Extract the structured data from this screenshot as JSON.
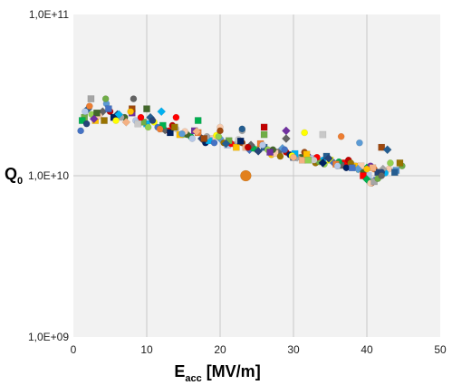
{
  "chart_data": {
    "type": "scatter",
    "title": "",
    "xlabel": {
      "main": "E",
      "sub": "acc",
      "unit": " [MV/m]"
    },
    "ylabel": {
      "main": "Q",
      "sub": "0"
    },
    "xlim": [
      0,
      50
    ],
    "ylim": [
      1000000000,
      100000000000
    ],
    "y_scale": "log",
    "grid": true,
    "x_tick_labels": [
      "0",
      "10",
      "20",
      "30",
      "40",
      "50"
    ],
    "y_tick_labels": [
      "1,0E+09",
      "1,0E+10",
      "1,0E+11"
    ],
    "colors": {
      "plot_background": "#f2f2f2",
      "grid": "#c8c8c8",
      "palette": [
        "#4472c4",
        "#ed7d31",
        "#a5a5a5",
        "#ffc000",
        "#5b9bd5",
        "#70ad47",
        "#264478",
        "#9e480e",
        "#636363",
        "#997300",
        "#255e91",
        "#43682b",
        "#f4b183",
        "#c00000",
        "#00b0f0",
        "#92d050",
        "#7030a0",
        "#ff0000",
        "#002060",
        "#ffff00",
        "#00b050",
        "#b4c7e7",
        "#c9c9c9",
        "#f8cbad"
      ],
      "outlier": "#e2801c"
    },
    "series": [
      {
        "points": [
          [
            1.0,
            19000000000.0
          ],
          [
            3.0,
            22000000000.0
          ],
          [
            6.0,
            24000000000.0
          ],
          [
            9.0,
            22000000000.0
          ],
          [
            12.0,
            19500000000.0
          ],
          [
            15.0,
            18000000000.0
          ],
          [
            18.0,
            16000000000.0
          ],
          [
            21.0,
            15500000000.0
          ],
          [
            24.0,
            14500000000.0
          ],
          [
            27.0,
            13500000000.0
          ],
          [
            30.0,
            13000000000.0
          ],
          [
            33.0,
            12000000000.0
          ],
          [
            36.0,
            11500000000.0
          ],
          [
            39.0,
            11000000000.0
          ],
          [
            42.0,
            10500000000.0
          ]
        ]
      },
      {
        "points": [
          [
            1.5,
            23000000000.0
          ],
          [
            4.0,
            25000000000.0
          ],
          [
            7.0,
            23000000000.0
          ],
          [
            10.0,
            21000000000.0
          ],
          [
            13.0,
            19000000000.0
          ],
          [
            16.0,
            17500000000.0
          ],
          [
            19.0,
            17000000000.0
          ],
          [
            22.0,
            15500000000.0
          ],
          [
            25.0,
            14500000000.0
          ],
          [
            28.0,
            14000000000.0
          ],
          [
            31.0,
            13000000000.0
          ],
          [
            34.0,
            12500000000.0
          ],
          [
            37.0,
            12000000000.0
          ],
          [
            40.0,
            11200000000.0
          ],
          [
            43.0,
            11000000000.0
          ]
        ]
      },
      {
        "points": [
          [
            2.0,
            26000000000.0
          ],
          [
            5.0,
            25000000000.0
          ],
          [
            8.0,
            24500000000.0
          ],
          [
            11.0,
            21500000000.0
          ],
          [
            14.0,
            19500000000.0
          ],
          [
            17.0,
            18500000000.0
          ],
          [
            20.0,
            17000000000.0
          ],
          [
            23.0,
            16000000000.0
          ],
          [
            26.0,
            15000000000.0
          ],
          [
            29.0,
            14000000000.0
          ],
          [
            32.0,
            13200000000.0
          ],
          [
            35.0,
            12500000000.0
          ],
          [
            38.0,
            11800000000.0
          ],
          [
            41.0,
            11000000000.0
          ],
          [
            44.0,
            10800000000.0
          ]
        ]
      },
      {
        "points": [
          [
            2.5,
            24000000000.0
          ],
          [
            5.5,
            23000000000.0
          ],
          [
            8.5,
            22000000000.0
          ],
          [
            11.5,
            20000000000.0
          ],
          [
            14.5,
            18000000000.0
          ],
          [
            17.5,
            17000000000.0
          ],
          [
            20.5,
            16000000000.0
          ],
          [
            23.5,
            15000000000.0
          ],
          [
            26.5,
            14500000000.0
          ],
          [
            29.5,
            13500000000.0
          ],
          [
            32.5,
            12800000000.0
          ],
          [
            35.5,
            12000000000.0
          ],
          [
            38.5,
            11500000000.0
          ],
          [
            41.5,
            10500000000.0
          ]
        ]
      },
      {
        "points": [
          [
            1.2,
            22000000000.0
          ],
          [
            3.5,
            23500000000.0
          ],
          [
            6.5,
            23000000000.0
          ],
          [
            9.5,
            21500000000.0
          ],
          [
            12.5,
            19200000000.0
          ],
          [
            15.5,
            18000000000.0
          ],
          [
            18.5,
            16500000000.0
          ],
          [
            21.5,
            15800000000.0
          ],
          [
            24.5,
            14800000000.0
          ],
          [
            27.5,
            13800000000.0
          ],
          [
            30.5,
            13000000000.0
          ],
          [
            33.5,
            12200000000.0
          ],
          [
            36.5,
            11600000000.0
          ],
          [
            39.5,
            10800000000.0
          ],
          [
            42.5,
            10400000000.0
          ]
        ]
      },
      {
        "points": [
          [
            2.2,
            27000000000.0
          ],
          [
            4.5,
            28000000000.0
          ],
          [
            8.0,
            26000000000.0
          ],
          [
            10.5,
            23000000000.0
          ],
          [
            13.5,
            20500000000.0
          ],
          [
            16.5,
            19000000000.0
          ],
          [
            19.5,
            17800000000.0
          ],
          [
            22.5,
            16800000000.0
          ],
          [
            25.5,
            15800000000.0
          ],
          [
            28.5,
            14800000000.0
          ],
          [
            31.5,
            14000000000.0
          ],
          [
            34.5,
            13200000000.0
          ],
          [
            37.5,
            12500000000.0
          ],
          [
            40.5,
            11500000000.0
          ]
        ]
      },
      {
        "points": [
          [
            1.8,
            21000000000.0
          ],
          [
            4.2,
            22000000000.0
          ],
          [
            7.2,
            21500000000.0
          ],
          [
            10.2,
            20000000000.0
          ],
          [
            13.2,
            18500000000.0
          ],
          [
            16.2,
            17000000000.0
          ],
          [
            19.2,
            16000000000.0
          ],
          [
            22.2,
            15000000000.0
          ],
          [
            25.2,
            14200000000.0
          ],
          [
            28.2,
            13200000000.0
          ],
          [
            31.2,
            12500000000.0
          ],
          [
            34.2,
            11800000000.0
          ],
          [
            37.2,
            11200000000.0
          ],
          [
            40.2,
            10000000000.0
          ],
          [
            41.0,
            9300000000.0
          ]
        ]
      },
      {
        "points": [
          [
            3.2,
            24500000000.0
          ],
          [
            6.2,
            24000000000.0
          ],
          [
            9.2,
            23000000000.0
          ],
          [
            12.2,
            20500000000.0
          ],
          [
            15.2,
            18800000000.0
          ],
          [
            18.2,
            17500000000.0
          ],
          [
            21.2,
            16500000000.0
          ],
          [
            24.2,
            15500000000.0
          ],
          [
            27.2,
            14500000000.0
          ],
          [
            30.2,
            13700000000.0
          ],
          [
            33.2,
            13000000000.0
          ],
          [
            36.2,
            12200000000.0
          ],
          [
            39.2,
            11500000000.0
          ],
          [
            42.2,
            11000000000.0
          ],
          [
            44.8,
            11500000000.0
          ]
        ]
      },
      {
        "points": [
          [
            2.8,
            22500000000.0
          ],
          [
            5.8,
            22000000000.0
          ],
          [
            8.8,
            21000000000.0
          ],
          [
            11.8,
            19500000000.0
          ],
          [
            14.8,
            18200000000.0
          ],
          [
            17.8,
            17000000000.0
          ],
          [
            20.8,
            15800000000.0
          ],
          [
            23.8,
            15000000000.0
          ],
          [
            26.8,
            14000000000.0
          ],
          [
            29.8,
            13300000000.0
          ],
          [
            32.8,
            12500000000.0
          ],
          [
            35.8,
            11800000000.0
          ],
          [
            38.8,
            11000000000.0
          ],
          [
            40.6,
            9000000000.0
          ],
          [
            43.8,
            10500000000.0
          ]
        ]
      },
      {
        "points": [
          [
            1.6,
            25000000000.0
          ],
          [
            4.8,
            26000000000.0
          ],
          [
            7.8,
            25000000000.0
          ],
          [
            10.8,
            22000000000.0
          ],
          [
            13.8,
            20000000000.0
          ],
          [
            16.8,
            18800000000.0
          ],
          [
            19.8,
            17500000000.0
          ],
          [
            22.8,
            16400000000.0
          ],
          [
            25.8,
            15500000000.0
          ],
          [
            28.8,
            14500000000.0
          ],
          [
            31.8,
            13600000000.0
          ],
          [
            34.8,
            12800000000.0
          ],
          [
            37.8,
            12000000000.0
          ],
          [
            40.8,
            11200000000.0
          ],
          [
            43.2,
            12000000000.0
          ]
        ]
      },
      {
        "points": [
          [
            2.4,
            30000000000.0
          ],
          [
            4.4,
            30000000000.0
          ],
          [
            8.2,
            30000000000.0
          ],
          [
            10.0,
            26000000000.0
          ],
          [
            12.0,
            25000000000.0
          ],
          [
            14.0,
            23000000000.0
          ],
          [
            17.0,
            22000000000.0
          ],
          [
            20.0,
            20000000000.0
          ],
          [
            23.0,
            19000000000.0
          ],
          [
            26.0,
            18000000000.0
          ],
          [
            29.0,
            17000000000.0
          ]
        ]
      },
      {
        "points": [
          [
            20.0,
            19000000000.0
          ],
          [
            23.0,
            19500000000.0
          ],
          [
            26.0,
            20000000000.0
          ],
          [
            29.0,
            19000000000.0
          ],
          [
            31.5,
            18500000000.0
          ],
          [
            34.0,
            18000000000.0
          ],
          [
            36.5,
            17500000000.0
          ],
          [
            39.0,
            16000000000.0
          ],
          [
            42.0,
            15000000000.0
          ],
          [
            42.8,
            14500000000.0
          ]
        ]
      },
      {
        "points": [
          [
            30.0,
            13000000000.0
          ],
          [
            32.0,
            12500000000.0
          ],
          [
            34.0,
            12000000000.0
          ],
          [
            36.0,
            11500000000.0
          ],
          [
            38.0,
            11200000000.0
          ],
          [
            40.0,
            11000000000.0
          ],
          [
            42.0,
            10500000000.0
          ],
          [
            44.5,
            12000000000.0
          ]
        ]
      },
      {
        "points": [
          [
            39.5,
            10000000000.0
          ],
          [
            40.0,
            9500000000.0
          ],
          [
            40.5,
            9000000000.0
          ],
          [
            41.0,
            9200000000.0
          ],
          [
            41.5,
            9600000000.0
          ],
          [
            42.0,
            10000000000.0
          ]
        ]
      },
      {
        "points": [
          [
            23.5,
            10000000000.0
          ]
        ]
      }
    ]
  }
}
